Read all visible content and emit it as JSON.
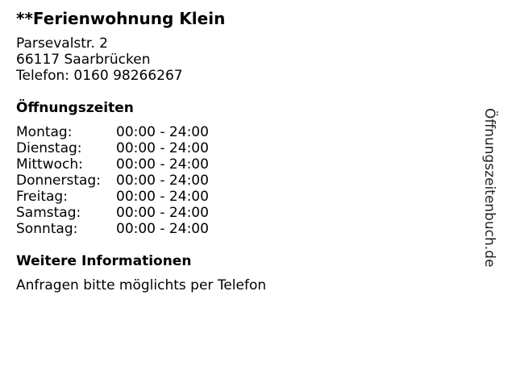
{
  "title": "**Ferienwohnung Klein",
  "address": {
    "street": "Parsevalstr. 2",
    "city": "66117 Saarbrücken",
    "phone": "Telefon: 0160 98266267"
  },
  "hours_heading": "Öffnungszeiten",
  "hours": [
    {
      "day": "Montag:",
      "time": "00:00 - 24:00"
    },
    {
      "day": "Dienstag:",
      "time": "00:00 - 24:00"
    },
    {
      "day": "Mittwoch:",
      "time": "00:00 - 24:00"
    },
    {
      "day": "Donnerstag:",
      "time": "00:00 - 24:00"
    },
    {
      "day": "Freitag:",
      "time": "00:00 - 24:00"
    },
    {
      "day": "Samstag:",
      "time": "00:00 - 24:00"
    },
    {
      "day": "Sonntag:",
      "time": "00:00 - 24:00"
    }
  ],
  "info_heading": "Weitere Informationen",
  "info_text": "Anfragen bitte möglichts per Telefon",
  "watermark": "Öffnungszeitenbuch.de"
}
